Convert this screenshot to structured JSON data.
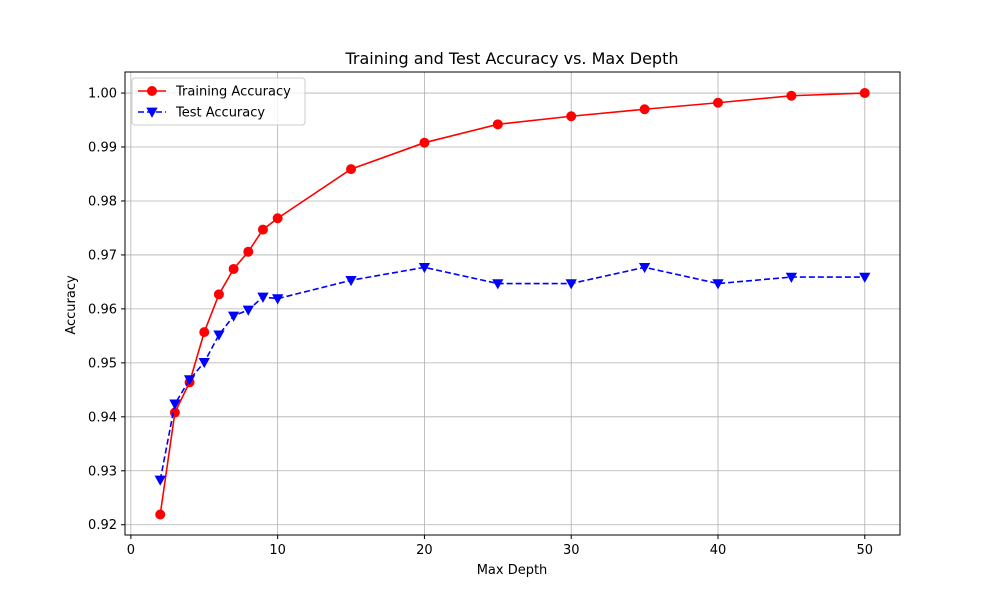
{
  "chart_data": {
    "type": "line",
    "title": "Training and Test Accuracy vs. Max Depth",
    "xlabel": "Max Depth",
    "ylabel": "Accuracy",
    "xlim": [
      -0.4,
      52.4
    ],
    "ylim": [
      0.9181,
      1.0039
    ],
    "xticks": [
      0,
      10,
      20,
      30,
      40,
      50
    ],
    "yticks": [
      0.92,
      0.93,
      0.94,
      0.95,
      0.96,
      0.97,
      0.98,
      0.99,
      1.0
    ],
    "xtick_labels": [
      "0",
      "10",
      "20",
      "30",
      "40",
      "50"
    ],
    "ytick_labels": [
      "0.92",
      "0.93",
      "0.94",
      "0.95",
      "0.96",
      "0.97",
      "0.98",
      "0.99",
      "1.00"
    ],
    "grid": true,
    "legend_position": "top-left",
    "x": [
      2,
      3,
      4,
      5,
      6,
      7,
      8,
      9,
      10,
      15,
      20,
      25,
      30,
      35,
      40,
      45,
      50
    ],
    "series": [
      {
        "name": "Training Accuracy",
        "color": "#ff0000",
        "line_style": "solid",
        "marker": "circle",
        "values": [
          0.9219,
          0.9408,
          0.9464,
          0.9557,
          0.9627,
          0.9674,
          0.9706,
          0.9747,
          0.9768,
          0.9859,
          0.9908,
          0.9942,
          0.9957,
          0.997,
          0.9982,
          0.9995,
          1.0
        ]
      },
      {
        "name": "Test Accuracy",
        "color": "#0000ff",
        "line_style": "dashed",
        "marker": "triangle-down",
        "values": [
          0.9283,
          0.9424,
          0.9469,
          0.9501,
          0.9552,
          0.9587,
          0.9598,
          0.9622,
          0.9619,
          0.9653,
          0.9677,
          0.9647,
          0.9647,
          0.9677,
          0.9647,
          0.9659,
          0.9659
        ]
      }
    ]
  }
}
